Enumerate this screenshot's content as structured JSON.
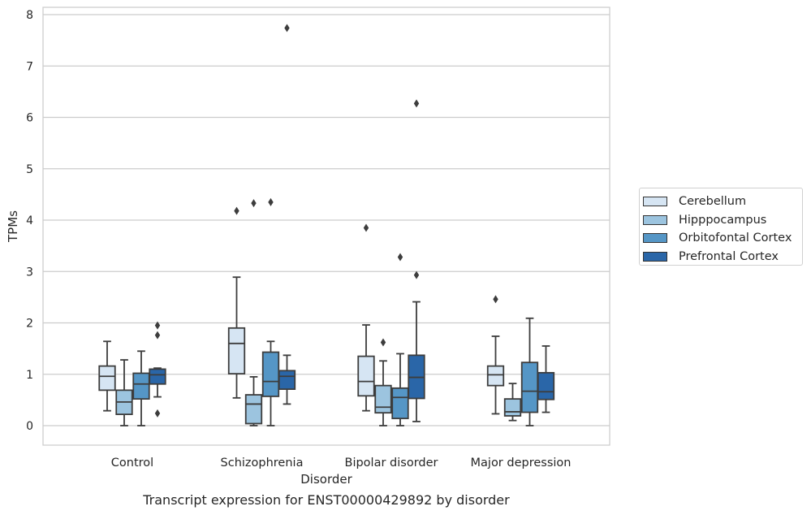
{
  "caption": "Transcript expression for ENST00000429892 by disorder",
  "chart_data": {
    "type": "box",
    "title": "",
    "xlabel": "Disorder",
    "ylabel": "TPMs",
    "ylim": [
      -0.38,
      8.15
    ],
    "yticks": [
      0,
      1,
      2,
      3,
      4,
      5,
      6,
      7,
      8
    ],
    "grid": "horizontal",
    "legend_placement": "right",
    "categories": [
      "Control",
      "Schizophrenia",
      "Bipolar disorder",
      "Major depression"
    ],
    "series": [
      {
        "name": "Cerebellum",
        "color": "#d6e5f3",
        "boxes": [
          {
            "q1": 0.69,
            "median": 0.96,
            "q3": 1.16,
            "whisker_low": 0.29,
            "whisker_high": 1.64,
            "outliers": []
          },
          {
            "q1": 1.01,
            "median": 1.6,
            "q3": 1.9,
            "whisker_low": 0.54,
            "whisker_high": 2.89,
            "outliers": [
              4.18
            ]
          },
          {
            "q1": 0.58,
            "median": 0.86,
            "q3": 1.35,
            "whisker_low": 0.29,
            "whisker_high": 1.96,
            "outliers": [
              3.85
            ]
          },
          {
            "q1": 0.78,
            "median": 0.99,
            "q3": 1.16,
            "whisker_low": 0.23,
            "whisker_high": 1.74,
            "outliers": [
              2.46
            ]
          }
        ]
      },
      {
        "name": "Hipppocampus",
        "color": "#9cc4df",
        "boxes": [
          {
            "q1": 0.22,
            "median": 0.46,
            "q3": 0.69,
            "whisker_low": 0.0,
            "whisker_high": 1.28,
            "outliers": []
          },
          {
            "q1": 0.04,
            "median": 0.42,
            "q3": 0.6,
            "whisker_low": 0.0,
            "whisker_high": 0.95,
            "outliers": [
              4.33
            ]
          },
          {
            "q1": 0.25,
            "median": 0.36,
            "q3": 0.78,
            "whisker_low": 0.0,
            "whisker_high": 1.26,
            "outliers": [
              1.62
            ]
          },
          {
            "q1": 0.19,
            "median": 0.27,
            "q3": 0.52,
            "whisker_low": 0.1,
            "whisker_high": 0.82,
            "outliers": []
          }
        ]
      },
      {
        "name": "Orbitofontal Cortex",
        "color": "#5596c6",
        "boxes": [
          {
            "q1": 0.52,
            "median": 0.81,
            "q3": 1.02,
            "whisker_low": 0.0,
            "whisker_high": 1.45,
            "outliers": []
          },
          {
            "q1": 0.57,
            "median": 0.86,
            "q3": 1.43,
            "whisker_low": 0.0,
            "whisker_high": 1.64,
            "outliers": [
              4.35
            ]
          },
          {
            "q1": 0.14,
            "median": 0.55,
            "q3": 0.73,
            "whisker_low": 0.0,
            "whisker_high": 1.4,
            "outliers": [
              3.28
            ]
          },
          {
            "q1": 0.26,
            "median": 0.67,
            "q3": 1.23,
            "whisker_low": 0.0,
            "whisker_high": 2.09,
            "outliers": []
          }
        ]
      },
      {
        "name": "Prefrontal Cortex",
        "color": "#2a66a8",
        "boxes": [
          {
            "q1": 0.81,
            "median": 0.99,
            "q3": 1.1,
            "whisker_low": 0.56,
            "whisker_high": 1.12,
            "outliers": [
              1.95,
              1.76,
              0.24
            ]
          },
          {
            "q1": 0.71,
            "median": 0.96,
            "q3": 1.07,
            "whisker_low": 0.42,
            "whisker_high": 1.37,
            "outliers": [
              7.74
            ]
          },
          {
            "q1": 0.53,
            "median": 0.94,
            "q3": 1.37,
            "whisker_low": 0.08,
            "whisker_high": 2.41,
            "outliers": [
              6.27,
              2.93
            ]
          },
          {
            "q1": 0.51,
            "median": 0.66,
            "q3": 1.03,
            "whisker_low": 0.26,
            "whisker_high": 1.55,
            "outliers": []
          }
        ]
      }
    ]
  }
}
